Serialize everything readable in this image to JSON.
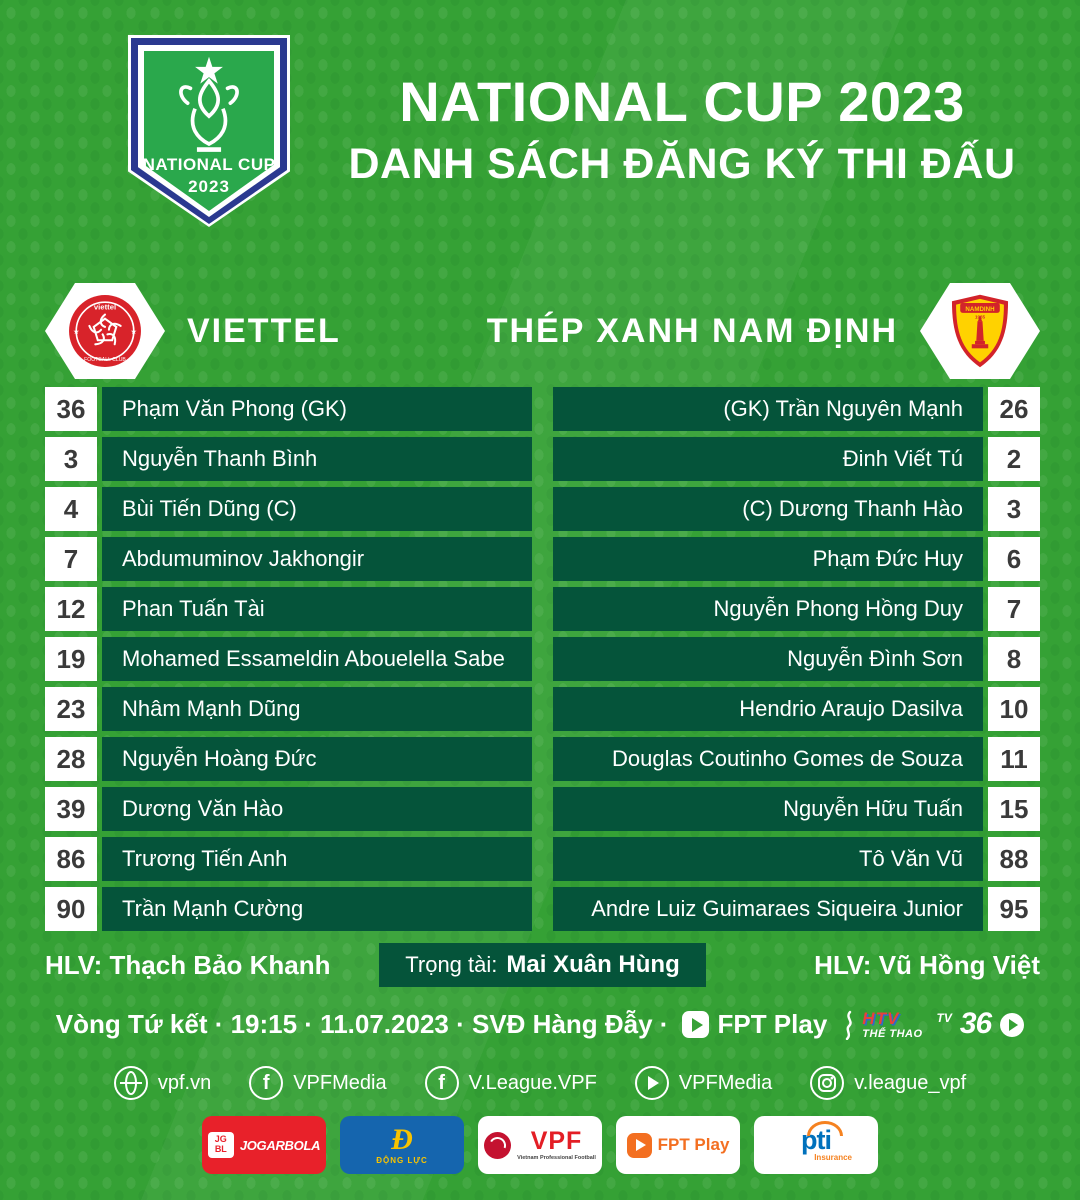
{
  "colors": {
    "background_green": "#35A135",
    "panel_dark_green": "#05543A",
    "crest_green": "#2AA84C",
    "navy": "#2B3990",
    "viettel_red": "#D8232A",
    "namdinh_red": "#D2232A",
    "namdinh_yellow": "#FFD200",
    "jogarbola_red": "#E8212A",
    "dongluc_blue": "#1565AE",
    "fpt_orange": "#F36F21",
    "pti_blue": "#0071BC",
    "pti_orange": "#F58220"
  },
  "header": {
    "badge_line1": "NATIONAL CUP",
    "badge_line2": "2023",
    "title_line1": "NATIONAL CUP 2023",
    "title_line2": "DANH SÁCH ĐĂNG KÝ THI ĐẤU"
  },
  "teams": {
    "home": {
      "name": "VIETTEL"
    },
    "away": {
      "name": "THÉP XANH NAM ĐỊNH"
    }
  },
  "crest_texts": {
    "viettel_top": "viettel",
    "viettel_bottom": "FOOTBALL CLUB",
    "namdinh_banner": "NAMDINH"
  },
  "rosters": {
    "home": [
      {
        "number": "36",
        "name": "Phạm Văn Phong (GK)"
      },
      {
        "number": "3",
        "name": "Nguyễn Thanh Bình"
      },
      {
        "number": "4",
        "name": "Bùi Tiến Dũng (C)"
      },
      {
        "number": "7",
        "name": "Abdumuminov Jakhongir"
      },
      {
        "number": "12",
        "name": "Phan Tuấn Tài"
      },
      {
        "number": "19",
        "name": "Mohamed Essameldin Abouelella Sabe"
      },
      {
        "number": "23",
        "name": "Nhâm Mạnh Dũng"
      },
      {
        "number": "28",
        "name": "Nguyễn Hoàng Đức"
      },
      {
        "number": "39",
        "name": "Dương Văn Hào"
      },
      {
        "number": "86",
        "name": "Trương Tiến Anh"
      },
      {
        "number": "90",
        "name": "Trần Mạnh Cường"
      }
    ],
    "away": [
      {
        "number": "26",
        "name": "(GK) Trần Nguyên Mạnh"
      },
      {
        "number": "2",
        "name": "Đinh Viết Tú"
      },
      {
        "number": "3",
        "name": "(C) Dương Thanh Hào"
      },
      {
        "number": "6",
        "name": "Phạm Đức Huy"
      },
      {
        "number": "7",
        "name": "Nguyễn Phong Hồng Duy"
      },
      {
        "number": "8",
        "name": "Nguyễn Đình Sơn"
      },
      {
        "number": "10",
        "name": "Hendrio Araujo Dasilva"
      },
      {
        "number": "11",
        "name": "Douglas Coutinho Gomes de Souza"
      },
      {
        "number": "15",
        "name": "Nguyễn Hữu Tuấn"
      },
      {
        "number": "88",
        "name": "Tô Văn Vũ"
      },
      {
        "number": "95",
        "name": "Andre Luiz Guimaraes Siqueira Junior"
      }
    ]
  },
  "officials": {
    "home_coach": "HLV: Thạch Bảo Khanh",
    "referee_label": "Trọng tài:",
    "referee_name": "Mai Xuân Hùng",
    "away_coach": "HLV: Vũ Hồng Việt"
  },
  "match_info": {
    "line": "Vòng Tứ kết  ·  19:15  ·  11.07.2023  ·  SVĐ Hàng Đẫy  ·",
    "broadcasters": [
      {
        "name": "FPT Play",
        "label": "FPT Play"
      },
      {
        "name": "HTV Thể Thao",
        "label_top": "HTV",
        "label_bottom": "THỂ THAO"
      },
      {
        "name": "TV360",
        "label_top": "TV",
        "label_main": "36"
      }
    ]
  },
  "social": [
    {
      "icon": "globe",
      "label": "vpf.vn"
    },
    {
      "icon": "facebook",
      "label": "VPFMedia"
    },
    {
      "icon": "facebook",
      "label": "V.League.VPF"
    },
    {
      "icon": "youtube",
      "label": "VPFMedia"
    },
    {
      "icon": "instagram",
      "label": "v.league_vpf"
    }
  ],
  "sponsors": [
    {
      "name": "Jogarbola",
      "label": "JOGARBOLA",
      "icon_line1": "JG",
      "icon_line2": "BL"
    },
    {
      "name": "Động Lực",
      "label": "ĐỘNG LỰC",
      "icon_text": "Đ"
    },
    {
      "name": "VPF",
      "label": "VPF",
      "sub": "Vietnam Professional Football"
    },
    {
      "name": "FPT Play",
      "label": "FPT Play"
    },
    {
      "name": "PTI",
      "label": "pti",
      "sub": "Insurance"
    }
  ]
}
